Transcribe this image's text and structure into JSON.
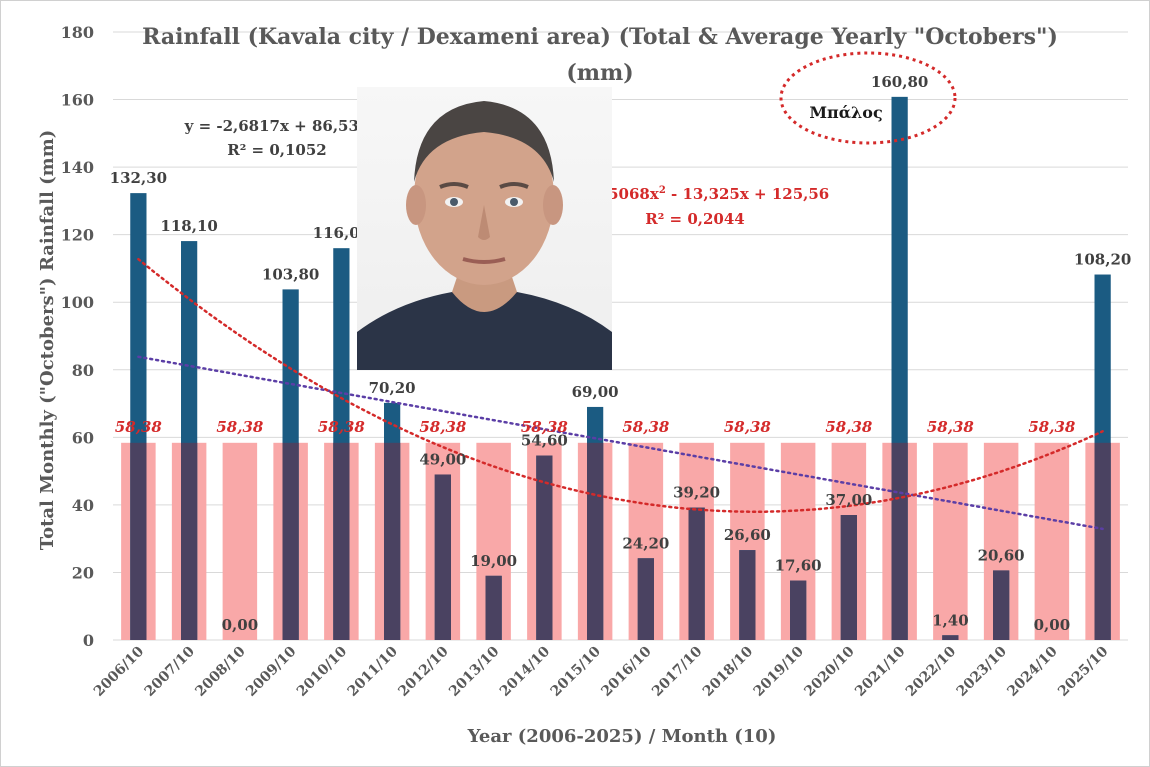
{
  "chart_data": {
    "type": "bar",
    "title": "Rainfall (Kavala city / Dexameni area) (Total & Average Yearly \"Octobers\")",
    "subtitle": "(mm)",
    "xlabel": "Year (2006-2025) / Month (10)",
    "ylabel": "Total Monthly (\"Octobers\") Rainfall (mm)",
    "ylim": [
      0,
      180
    ],
    "yticks": [
      0,
      20,
      40,
      60,
      80,
      100,
      120,
      140,
      160,
      180
    ],
    "categories": [
      "2006/10",
      "2007/10",
      "2008/10",
      "2009/10",
      "2010/10",
      "2011/10",
      "2012/10",
      "2013/10",
      "2014/10",
      "2015/10",
      "2016/10",
      "2017/10",
      "2018/10",
      "2019/10",
      "2020/10",
      "2021/10",
      "2022/10",
      "2023/10",
      "2024/10",
      "2025/10"
    ],
    "series": [
      {
        "values": [
          132.3,
          118.1,
          0.0,
          103.8,
          116.0,
          70.2,
          49.0,
          19.0,
          54.6,
          69.0,
          24.2,
          39.2,
          26.6,
          17.6,
          37.0,
          160.8,
          1.4,
          20.6,
          0.0,
          108.2
        ],
        "labels": [
          "132,30",
          "118,10",
          "0,00",
          "103,80",
          "116,00",
          "70,20",
          "49,00",
          "19,00",
          "54,60",
          "69,00",
          "24,20",
          "39,20",
          "26,60",
          "17,60",
          "37,00",
          "160,80",
          "1,40",
          "20,60",
          "0,00",
          "108,20"
        ],
        "color": "#1b5b82"
      },
      {
        "values": [
          58.38,
          58.38,
          58.38,
          58.38,
          58.38,
          58.38,
          58.38,
          58.38,
          58.38,
          58.38,
          58.38,
          58.38,
          58.38,
          58.38,
          58.38,
          58.38,
          58.38,
          58.38,
          58.38,
          58.38
        ],
        "label": "58,38",
        "color": "#f9a8a8"
      }
    ],
    "trendlines": [
      {
        "type": "linear",
        "equation": "y = -2,6817x + 86,537",
        "r2": "R² = 0,1052",
        "color": "#5b3ea6",
        "coef": [
          86.537,
          -2.6817
        ]
      },
      {
        "type": "polynomial",
        "equation_prefix": "y = 0,5068x",
        "equation_sup": "2",
        "equation_suffix": " - 13,325x + 125,56",
        "r2": "R² = 0,2044",
        "color": "#d42a2a",
        "coef": [
          125.56,
          -13.325,
          0.5068
        ]
      }
    ],
    "annotation": "Μπάλος",
    "grid": true,
    "legend": "none"
  },
  "colors": {
    "axis_text": "#595959",
    "grid": "#d9d9d9",
    "trend_red": "#d42a2a"
  }
}
